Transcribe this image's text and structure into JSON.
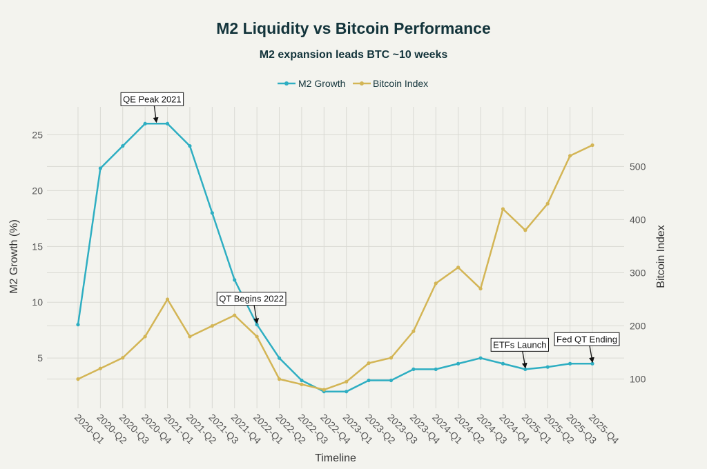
{
  "chart_data": {
    "type": "line",
    "title": "M2 Liquidity vs Bitcoin Performance",
    "subtitle": "M2 expansion leads BTC ~10 weeks",
    "xlabel": "Timeline",
    "ylabel": "M2 Growth (%)",
    "y2label": "Bitcoin Index",
    "categories": [
      "2020-Q1",
      "2020-Q2",
      "2020-Q3",
      "2020-Q4",
      "2021-Q1",
      "2021-Q2",
      "2021-Q3",
      "2021-Q4",
      "2022-Q1",
      "2022-Q2",
      "2022-Q3",
      "2022-Q4",
      "2023-Q1",
      "2023-Q2",
      "2023-Q3",
      "2023-Q4",
      "2024-Q1",
      "2024-Q2",
      "2024-Q3",
      "2024-Q4",
      "2025-Q1",
      "2025-Q2",
      "2025-Q3",
      "2025-Q4"
    ],
    "ylim": [
      0.5,
      27.5
    ],
    "y2lim": [
      45,
      612
    ],
    "yticks": [
      5,
      10,
      15,
      20,
      25
    ],
    "y2ticks": [
      100,
      200,
      300,
      400,
      500
    ],
    "grid": true,
    "legend_position": "top-center",
    "series": [
      {
        "name": "M2 Growth",
        "axis": "left",
        "color": "#2eaec2",
        "values": [
          8,
          22,
          24,
          26,
          26,
          24,
          18,
          12,
          8,
          5,
          3,
          2,
          2,
          3,
          3,
          4,
          4,
          4.5,
          5,
          4.5,
          4,
          4.2,
          4.5,
          4.5
        ]
      },
      {
        "name": "Bitcoin Index",
        "axis": "right",
        "color": "#d3b555",
        "values": [
          100,
          120,
          140,
          180,
          250,
          180,
          200,
          220,
          180,
          100,
          90,
          80,
          95,
          130,
          140,
          190,
          280,
          310,
          270,
          420,
          380,
          430,
          520,
          540
        ]
      }
    ],
    "annotations": [
      {
        "text": "QE Peak 2021",
        "category": "2020-Q4",
        "series": "M2 Growth"
      },
      {
        "text": "QT Begins 2022",
        "category": "2022-Q1",
        "series": "M2 Growth"
      },
      {
        "text": "ETFs Launch",
        "category": "2025-Q1",
        "series": "M2 Growth"
      },
      {
        "text": "Fed QT Ending",
        "category": "2025-Q4",
        "series": "M2 Growth"
      }
    ]
  }
}
